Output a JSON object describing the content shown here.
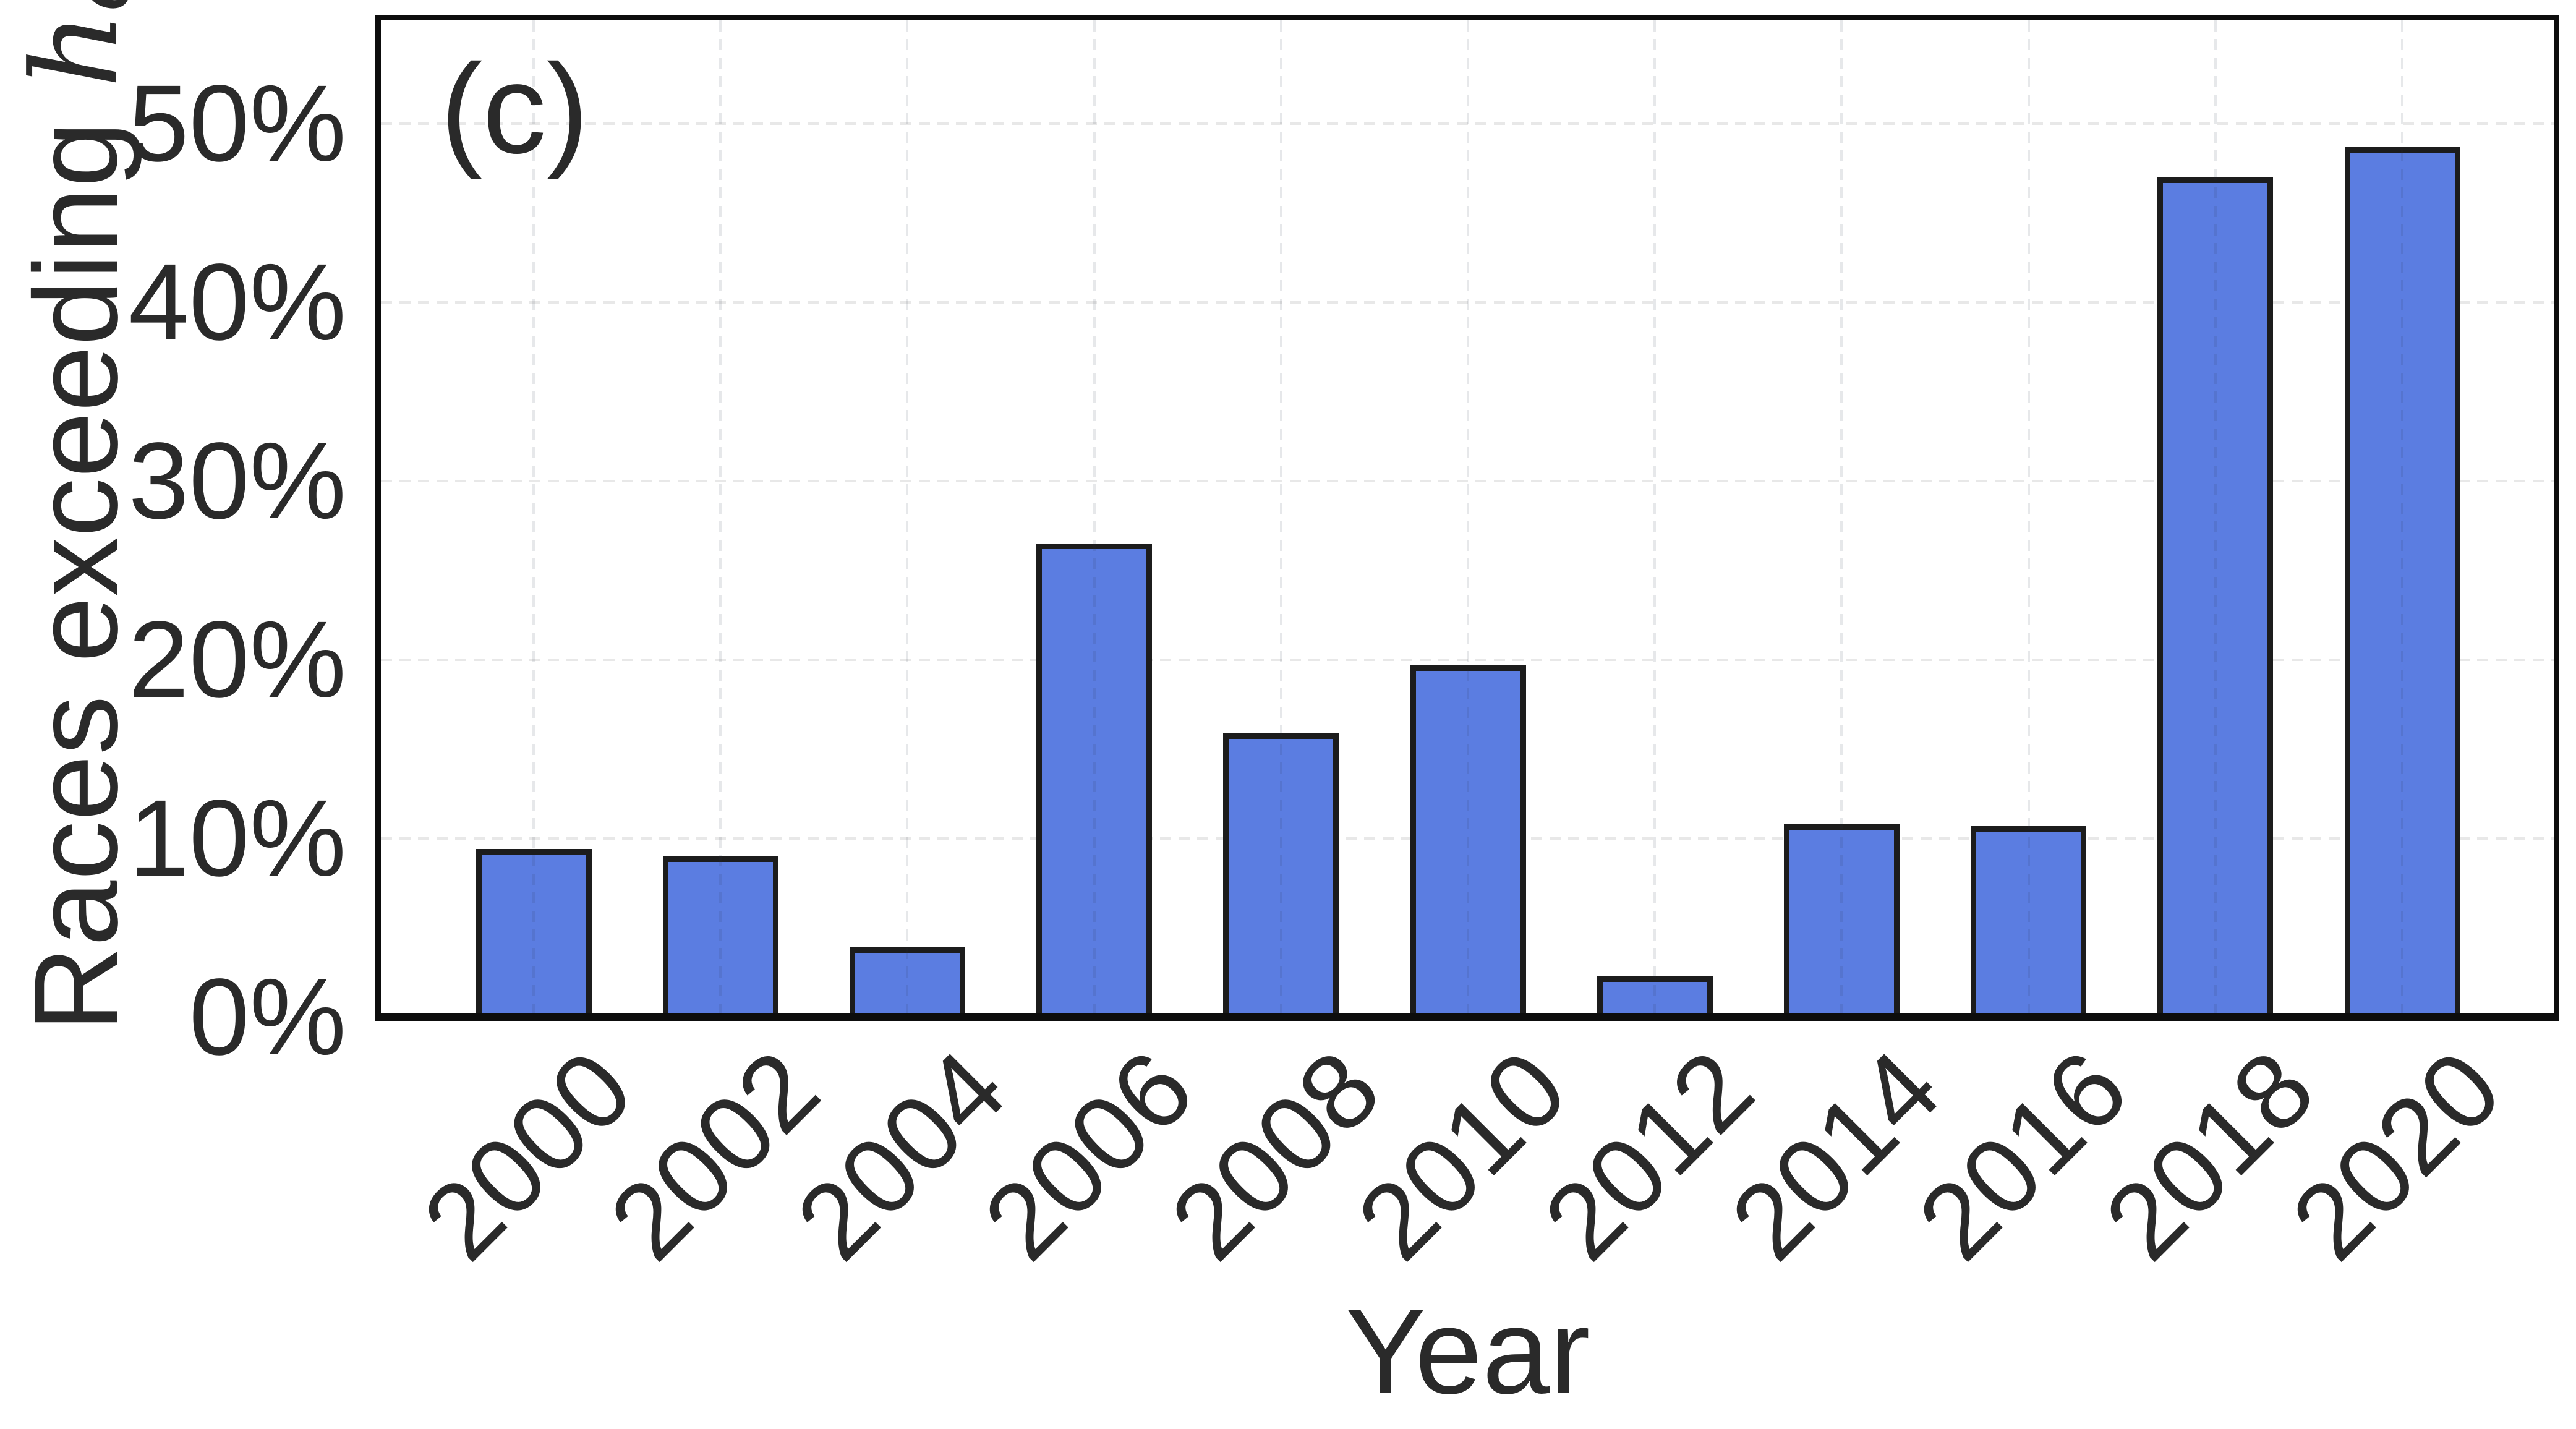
{
  "panel_label": "(c)",
  "colors": {
    "bar_fill": "#5b7de1",
    "bar_edge": "#1c1c1c",
    "spine": "#0d0d0d",
    "grid": "#e8e8e8",
    "text": "#2a2a2a"
  },
  "chart_data": {
    "type": "bar",
    "title": "",
    "panel_tag": "(c)",
    "categories": [
      "2000",
      "2002",
      "2004",
      "2006",
      "2008",
      "2010",
      "2012",
      "2014",
      "2016",
      "2018",
      "2020"
    ],
    "values": [
      9.4,
      9.0,
      3.9,
      26.5,
      15.9,
      19.7,
      2.3,
      10.8,
      10.7,
      47.0,
      48.7
    ],
    "values_unit": "%",
    "xlabel": "Year",
    "ylabel_prefix": "Races exceeding ",
    "ylabel_math_base": "h",
    "ylabel_math_sub": "c",
    "yticks": [
      {
        "value": 0,
        "label": "0%"
      },
      {
        "value": 10,
        "label": "10%"
      },
      {
        "value": 20,
        "label": "20%"
      },
      {
        "value": 30,
        "label": "30%"
      },
      {
        "value": 40,
        "label": "40%"
      },
      {
        "value": 50,
        "label": "50%"
      }
    ],
    "ylim": [
      0,
      55.9
    ],
    "grid": true,
    "grid_style": "dashed",
    "legend": null,
    "xtick_rotation_deg": 45
  }
}
